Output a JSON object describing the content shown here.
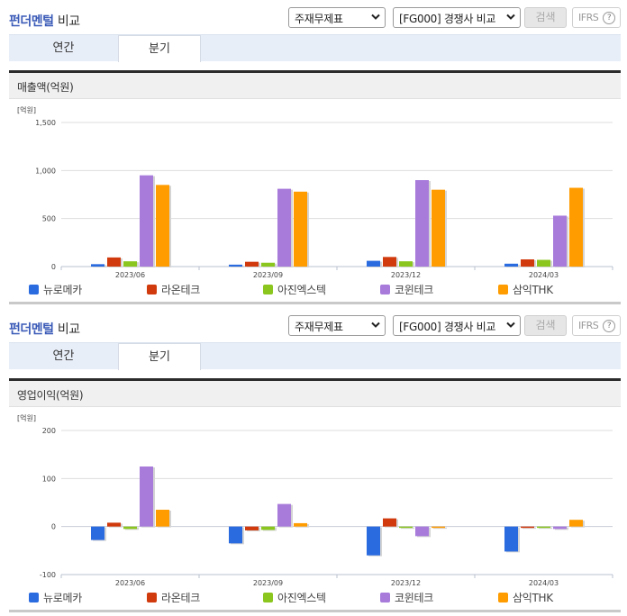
{
  "colors": {
    "title_blue": "#3a5ab7",
    "series": [
      "#2a6be0",
      "#d03a0c",
      "#8ac61e",
      "#a87bdb",
      "#ff9c00"
    ]
  },
  "sections": [
    {
      "title_part1": "펀더멘털",
      "title_part2": "비교",
      "select1": "주재무제표",
      "select2": "[FG000] 경쟁사 비교",
      "search_label": "검색",
      "ifrs_label": "IFRS",
      "help_glyph": "?",
      "tabs": [
        {
          "label": "연간",
          "active": false
        },
        {
          "label": "분기",
          "active": true
        }
      ],
      "panel_title": "매출액(억원)",
      "unit": "[억원]"
    },
    {
      "title_part1": "펀더멘털",
      "title_part2": "비교",
      "select1": "주재무제표",
      "select2": "[FG000] 경쟁사 비교",
      "search_label": "검색",
      "ifrs_label": "IFRS",
      "help_glyph": "?",
      "tabs": [
        {
          "label": "연간",
          "active": false
        },
        {
          "label": "분기",
          "active": true
        }
      ],
      "panel_title": "영업이익(억원)",
      "unit": "[억원]"
    }
  ],
  "legend": [
    "뉴로메카",
    "라온테크",
    "아진엑스텍",
    "코윈테크",
    "삼익THK"
  ],
  "chart_data": [
    {
      "type": "bar",
      "title": "매출액(억원)",
      "xlabel": "",
      "ylabel": "[억원]",
      "categories": [
        "2023/06",
        "2023/09",
        "2023/12",
        "2024/03"
      ],
      "ylim": [
        0,
        1500
      ],
      "yticks": [
        0,
        500,
        1000,
        1500
      ],
      "ytick_labels": [
        "0",
        "500",
        "1,000",
        "1,500"
      ],
      "grid": true,
      "legend_position": "bottom",
      "series": [
        {
          "name": "뉴로메카",
          "values": [
            25,
            20,
            60,
            30
          ]
        },
        {
          "name": "라온테크",
          "values": [
            95,
            50,
            100,
            75
          ]
        },
        {
          "name": "아진엑스텍",
          "values": [
            55,
            40,
            55,
            70
          ]
        },
        {
          "name": "코윈테크",
          "values": [
            950,
            810,
            900,
            530
          ]
        },
        {
          "name": "삼익THK",
          "values": [
            850,
            780,
            800,
            820
          ]
        }
      ]
    },
    {
      "type": "bar",
      "title": "영업이익(억원)",
      "xlabel": "",
      "ylabel": "[억원]",
      "categories": [
        "2023/06",
        "2023/09",
        "2023/12",
        "2024/03"
      ],
      "ylim": [
        -100,
        200
      ],
      "yticks": [
        -100,
        0,
        100,
        200
      ],
      "ytick_labels": [
        "-100",
        "0",
        "100",
        "200"
      ],
      "grid": true,
      "legend_position": "bottom",
      "series": [
        {
          "name": "뉴로메카",
          "values": [
            -28,
            -35,
            -60,
            -52
          ]
        },
        {
          "name": "라온테크",
          "values": [
            8,
            -8,
            17,
            -2
          ]
        },
        {
          "name": "아진엑스텍",
          "values": [
            -5,
            -7,
            -2,
            -2
          ]
        },
        {
          "name": "코윈테크",
          "values": [
            125,
            47,
            -20,
            -5
          ]
        },
        {
          "name": "삼익THK",
          "values": [
            35,
            7,
            0,
            14
          ]
        }
      ]
    }
  ]
}
